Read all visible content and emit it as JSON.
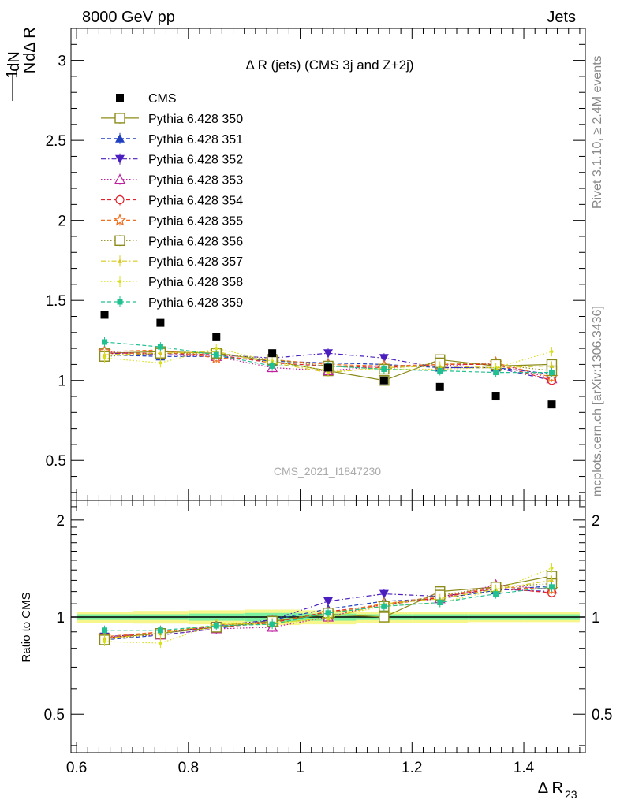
{
  "header": {
    "left": "8000 GeV pp",
    "right": "Jets"
  },
  "side_labels": {
    "rivet": "Rivet 3.1.10, ≥ 2.4M events",
    "mcplots": "mcplots.cern.ch [arXiv:1306.3436]"
  },
  "watermark": "CMS_2021_I1847230",
  "main_title": "Δ R (jets) (CMS 3j and Z+2j)",
  "chart_data": [
    {
      "type": "scatter",
      "panel": "main",
      "ylabel": "1/N dN/dΔ R23",
      "ylim": [
        0.25,
        3.2
      ],
      "yticks": [
        0.5,
        1,
        1.5,
        2,
        2.5,
        3
      ],
      "yticklabels": [
        "0.5",
        "1",
        "1.5",
        "2",
        "2.5",
        "3"
      ],
      "x": [
        0.65,
        0.75,
        0.85,
        0.95,
        1.05,
        1.15,
        1.25,
        1.35,
        1.45
      ],
      "data": {
        "name": "CMS",
        "values": [
          1.41,
          1.36,
          1.27,
          1.17,
          1.08,
          1.0,
          0.96,
          0.9,
          0.85
        ]
      },
      "series": [
        {
          "name": "Pythia 6.428 350",
          "values": [
            1.17,
            1.18,
            1.17,
            1.12,
            1.06,
            1.0,
            1.13,
            1.09,
            1.1
          ]
        },
        {
          "name": "Pythia 6.428 351",
          "values": [
            1.16,
            1.15,
            1.15,
            1.12,
            1.11,
            1.1,
            1.08,
            1.08,
            1.04
          ]
        },
        {
          "name": "Pythia 6.428 352",
          "values": [
            1.17,
            1.16,
            1.16,
            1.14,
            1.17,
            1.14,
            1.08,
            1.08,
            1.0
          ]
        },
        {
          "name": "Pythia 6.428 353",
          "values": [
            1.18,
            1.16,
            1.15,
            1.08,
            1.06,
            1.09,
            1.09,
            1.11,
            1.01
          ]
        },
        {
          "name": "Pythia 6.428 354",
          "values": [
            1.17,
            1.17,
            1.16,
            1.11,
            1.09,
            1.08,
            1.1,
            1.1,
            1.0
          ]
        },
        {
          "name": "Pythia 6.428 355",
          "values": [
            1.18,
            1.19,
            1.14,
            1.13,
            1.1,
            1.09,
            1.1,
            1.11,
            1.02
          ]
        },
        {
          "name": "Pythia 6.428 356",
          "values": [
            1.15,
            1.17,
            1.17,
            1.13,
            1.09,
            1.07,
            1.11,
            1.1,
            1.06
          ]
        },
        {
          "name": "Pythia 6.428 357",
          "values": [
            1.16,
            1.17,
            1.18,
            1.11,
            1.05,
            1.08,
            1.09,
            1.08,
            1.09
          ]
        },
        {
          "name": "Pythia 6.428 358",
          "values": [
            1.14,
            1.11,
            1.2,
            1.12,
            1.06,
            1.07,
            1.07,
            1.08,
            1.18
          ]
        },
        {
          "name": "Pythia 6.428 359",
          "values": [
            1.24,
            1.21,
            1.16,
            1.09,
            1.09,
            1.07,
            1.06,
            1.05,
            1.05
          ]
        }
      ]
    },
    {
      "type": "scatter",
      "panel": "ratio",
      "ylabel": "Ratio to CMS",
      "xlabel": "Δ R23",
      "xlim": [
        0.59,
        1.51
      ],
      "ylim": [
        0.38,
        2.3
      ],
      "xticks": [
        0.6,
        0.8,
        1.0,
        1.2,
        1.4
      ],
      "xticklabels": [
        "0.6",
        "0.8",
        "1",
        "1.2",
        "1.4"
      ],
      "yticks": [
        0.5,
        1,
        2
      ],
      "yticklabels": [
        "0.5",
        "1",
        "2"
      ],
      "x": [
        0.65,
        0.75,
        0.85,
        0.95,
        1.05,
        1.15,
        1.25,
        1.35,
        1.45
      ],
      "band_inner": [
        0.02,
        0.02,
        0.025,
        0.03,
        0.025,
        0.02,
        0.02,
        0.02,
        0.02
      ],
      "band_outer": [
        0.04,
        0.045,
        0.05,
        0.055,
        0.05,
        0.04,
        0.04,
        0.035,
        0.035
      ],
      "series": [
        {
          "name": "Pythia 6.428 350",
          "values": [
            0.86,
            0.89,
            0.93,
            0.97,
            1.02,
            1.0,
            1.2,
            1.24,
            1.34
          ]
        },
        {
          "name": "Pythia 6.428 351",
          "values": [
            0.85,
            0.88,
            0.92,
            0.98,
            1.06,
            1.12,
            1.14,
            1.21,
            1.25
          ]
        },
        {
          "name": "Pythia 6.428 352",
          "values": [
            0.87,
            0.89,
            0.94,
            0.98,
            1.12,
            1.18,
            1.16,
            1.22,
            1.2
          ]
        },
        {
          "name": "Pythia 6.428 353",
          "values": [
            0.87,
            0.88,
            0.92,
            0.93,
            1.0,
            1.1,
            1.14,
            1.26,
            1.22
          ]
        },
        {
          "name": "Pythia 6.428 354",
          "values": [
            0.86,
            0.9,
            0.93,
            0.96,
            1.04,
            1.09,
            1.15,
            1.23,
            1.19
          ]
        },
        {
          "name": "Pythia 6.428 355",
          "values": [
            0.87,
            0.9,
            0.94,
            0.97,
            1.03,
            1.1,
            1.16,
            1.24,
            1.22
          ]
        },
        {
          "name": "Pythia 6.428 356",
          "values": [
            0.85,
            0.89,
            0.93,
            0.97,
            1.03,
            1.08,
            1.17,
            1.24,
            1.27
          ]
        },
        {
          "name": "Pythia 6.428 357",
          "values": [
            0.86,
            0.89,
            0.95,
            0.96,
            0.99,
            1.1,
            1.14,
            1.22,
            1.3
          ]
        },
        {
          "name": "Pythia 6.428 358",
          "values": [
            0.84,
            0.83,
            0.95,
            0.95,
            1.0,
            1.08,
            1.11,
            1.21,
            1.42
          ]
        },
        {
          "name": "Pythia 6.428 359",
          "values": [
            0.91,
            0.91,
            0.94,
            0.95,
            1.03,
            1.08,
            1.11,
            1.18,
            1.24
          ]
        }
      ]
    }
  ],
  "series_colors": [
    "#8b8b1a",
    "#1f3fbf",
    "#4b1fbf",
    "#c01fa0",
    "#e0202a",
    "#f07020",
    "#8b8b1a",
    "#d8c81a",
    "#d8e01a",
    "#20c090"
  ],
  "series_markers": [
    "square-open",
    "triangle-up",
    "triangle-down",
    "triangle-open",
    "circle-open",
    "star-open",
    "square-open",
    "tri-small",
    "dot",
    "square-filled"
  ],
  "series_dash": [
    "solid",
    "dashed",
    "dashdot",
    "dotted",
    "dashed",
    "dashed",
    "dotted",
    "dashdot",
    "dotted",
    "dashed"
  ],
  "band_colors": {
    "inner": "#7cf0a0",
    "outer": "#f6f68a"
  }
}
